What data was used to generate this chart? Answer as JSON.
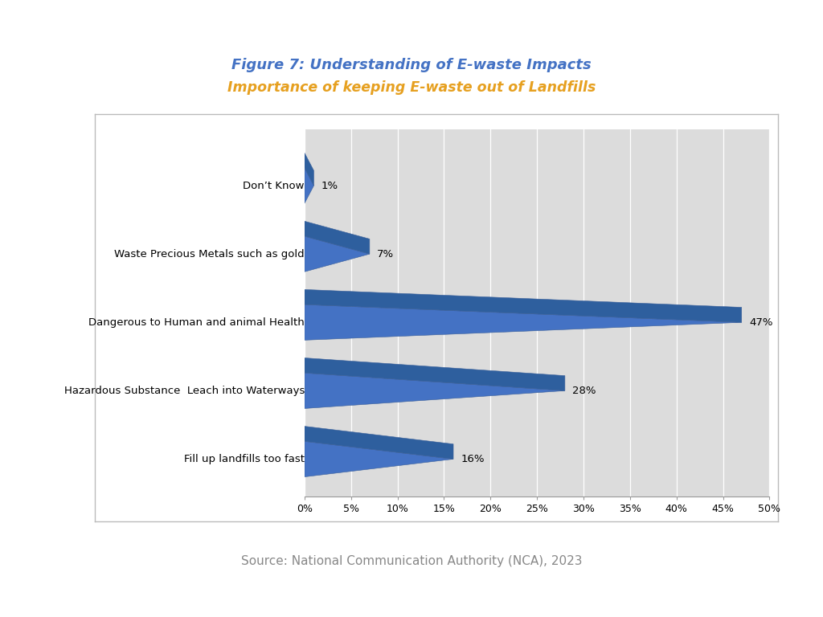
{
  "title_line1": "Figure 7: Understanding of E-waste Impacts",
  "title_line2": "Importance of keeping E-waste out of Landfills",
  "title_color1": "#4472C4",
  "title_color2": "#E6A020",
  "categories": [
    "Don’t Know",
    "Waste Precious Metals such as gold",
    "Dangerous to Human and animal Health",
    "Hazardous Substance  Leach into Waterways",
    "Fill up landfills too fast"
  ],
  "values": [
    1,
    7,
    47,
    28,
    16
  ],
  "bar_color_front": "#4472C4",
  "bar_color_top": "#2E5F9E",
  "bar_color_side": "#1F4788",
  "xlim": [
    0,
    50
  ],
  "xticks": [
    0,
    5,
    10,
    15,
    20,
    25,
    30,
    35,
    40,
    45,
    50
  ],
  "xtick_labels": [
    "0%",
    "5%",
    "10%",
    "15%",
    "20%",
    "25%",
    "30%",
    "35%",
    "40%",
    "45%",
    "50%"
  ],
  "source_text": "Source: National Communication Authority (NCA), 2023",
  "source_color": "#888888",
  "chart_bg": "#DCDCDC",
  "grid_color": "#FFFFFF",
  "border_color": "#AAAAAA",
  "navy_bar_color": "#1F3864",
  "label_fontsize": 9.5,
  "value_fontsize": 9.5,
  "tick_fontsize": 9
}
